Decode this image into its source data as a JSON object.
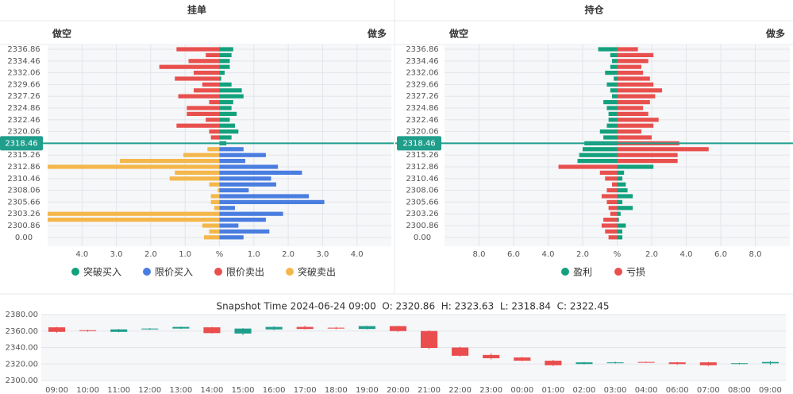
{
  "chart_data": [
    {
      "type": "bar",
      "orientation": "horizontal",
      "title": "挂单",
      "left_label": "做空",
      "right_label": "做多",
      "categories": [
        "2336.86",
        null,
        "2334.46",
        null,
        "2332.06",
        null,
        "2329.66",
        null,
        "2327.26",
        null,
        "2324.86",
        null,
        "2322.46",
        null,
        "2320.06",
        null,
        "2318.46",
        null,
        "2315.26",
        null,
        "2312.86",
        null,
        "2310.46",
        null,
        "2308.06",
        null,
        "2305.66",
        null,
        "2303.26",
        null,
        "2300.86",
        null,
        "0.00"
      ],
      "xlim": [
        -5,
        5
      ],
      "xticks": [
        {
          "value": -4,
          "label": "4.0"
        },
        {
          "value": -3,
          "label": "3.0"
        },
        {
          "value": -2,
          "label": "2.0"
        },
        {
          "value": -1,
          "label": "1.0"
        },
        {
          "value": 0,
          "label": "%"
        },
        {
          "value": 1,
          "label": "1.0"
        },
        {
          "value": 2,
          "label": "2.0"
        },
        {
          "value": 3,
          "label": "3.0"
        },
        {
          "value": 4,
          "label": "4.0"
        }
      ],
      "grid": true,
      "series": [
        {
          "name": "突破买入",
          "color": "#13a17d",
          "values": [
            0.4,
            0.35,
            0.3,
            0.3,
            0.15,
            0.05,
            0.35,
            0.65,
            0.7,
            0.4,
            0.35,
            0.5,
            0.3,
            0.45,
            0.55,
            0.35,
            0.2,
            null,
            null,
            null,
            null,
            null,
            null,
            null,
            null,
            null,
            null,
            null,
            null,
            null,
            null,
            null,
            null
          ]
        },
        {
          "name": "限价买入",
          "color": "#4a7de0",
          "values": [
            null,
            null,
            null,
            null,
            null,
            null,
            null,
            null,
            null,
            null,
            null,
            null,
            null,
            null,
            null,
            null,
            null,
            0.7,
            1.35,
            0.75,
            1.7,
            2.4,
            1.5,
            1.65,
            0.85,
            2.6,
            3.05,
            0.45,
            1.85,
            1.35,
            0.55,
            1.45,
            0.7
          ]
        },
        {
          "name": "限价卖出",
          "color": "#e8504e",
          "values": [
            -1.25,
            -0.4,
            -0.9,
            -1.75,
            -0.75,
            -1.3,
            -0.5,
            -0.75,
            -1.2,
            -0.3,
            -0.95,
            -0.95,
            -0.4,
            -1.25,
            -0.3,
            -0.25,
            null,
            null,
            null,
            null,
            null,
            null,
            null,
            null,
            null,
            null,
            null,
            null,
            null,
            null,
            null,
            null,
            null
          ]
        },
        {
          "name": "突破卖出",
          "color": "#f4b74b",
          "values": [
            null,
            null,
            null,
            null,
            null,
            null,
            null,
            null,
            null,
            null,
            null,
            null,
            null,
            null,
            null,
            null,
            null,
            -0.35,
            -1.05,
            -2.9,
            -5.0,
            -1.3,
            -1.45,
            -0.3,
            -0.05,
            -0.25,
            -0.25,
            -0.15,
            -5.0,
            -5.0,
            -0.5,
            -0.3,
            -0.45
          ]
        }
      ]
    },
    {
      "type": "bar",
      "orientation": "horizontal",
      "title": "持仓",
      "left_label": "做空",
      "right_label": "做多",
      "categories": [
        "2336.86",
        null,
        "2334.46",
        null,
        "2332.06",
        null,
        "2329.66",
        null,
        "2327.26",
        null,
        "2324.86",
        null,
        "2322.46",
        null,
        "2320.06",
        null,
        "2318.46",
        null,
        "2315.26",
        null,
        "2312.86",
        null,
        "2310.46",
        null,
        "2308.06",
        null,
        "2305.66",
        null,
        "2303.26",
        null,
        "2300.86",
        null,
        "0.00"
      ],
      "xlim": [
        -10,
        10
      ],
      "xticks": [
        {
          "value": -8,
          "label": "8.0"
        },
        {
          "value": -6,
          "label": "6.0"
        },
        {
          "value": -4,
          "label": "4.0"
        },
        {
          "value": -2,
          "label": "2.0"
        },
        {
          "value": 0,
          "label": "%"
        },
        {
          "value": 2,
          "label": "2.0"
        },
        {
          "value": 4,
          "label": "4.0"
        },
        {
          "value": 6,
          "label": "6.0"
        },
        {
          "value": 8,
          "label": "8.0"
        }
      ],
      "grid": true,
      "series": [
        {
          "name": "盈利",
          "color": "#13a17d",
          "values": [
            -1.1,
            -0.4,
            -0.3,
            -0.4,
            -0.7,
            -0.2,
            -0.6,
            -0.4,
            -0.3,
            -0.8,
            -0.6,
            -0.5,
            -0.5,
            -0.6,
            -1.0,
            -0.8,
            -1.9,
            -2.0,
            -2.2,
            -2.3,
            2.1,
            0.4,
            0.3,
            0.5,
            0.6,
            0.9,
            0.3,
            0.9,
            0.2,
            0.1,
            0.5,
            0.3,
            0.3
          ]
        },
        {
          "name": "亏损",
          "color": "#e8504e",
          "values": [
            1.2,
            2.1,
            1.8,
            1.4,
            1.5,
            1.9,
            2.1,
            2.6,
            2.2,
            1.9,
            1.5,
            1.8,
            2.4,
            2.1,
            1.4,
            2.0,
            3.6,
            5.3,
            3.5,
            3.5,
            -3.4,
            -1.0,
            -0.7,
            -0.3,
            -0.6,
            -0.9,
            -0.6,
            -0.5,
            -0.4,
            -0.8,
            -0.9,
            -0.7,
            -0.5
          ]
        }
      ]
    },
    {
      "type": "candlestick",
      "title": "Snapshot Time 2024-06-24 09:00  O: 2320.86  H: 2323.63  L: 2318.84  C: 2322.45",
      "categories": [
        "09:00",
        "10:00",
        "11:00",
        "12:00",
        "13:00",
        "14:00",
        "15:00",
        "16:00",
        "17:00",
        "18:00",
        "19:00",
        "20:00",
        "21:00",
        "22:00",
        "23:00",
        "00:00",
        "01:00",
        "02:00",
        "03:00",
        "04:00",
        "06:00",
        "07:00",
        "08:00",
        "09:00"
      ],
      "open": [
        2364.5,
        2361,
        2359,
        2362,
        2363,
        2364.5,
        2357,
        2362,
        2365,
        2364,
        2362.5,
        2366,
        2360,
        2340,
        2331,
        2328,
        2324,
        2320,
        2321.5,
        2322.5,
        2322,
        2322,
        2320,
        2320.86
      ],
      "high": [
        2365,
        2361.5,
        2362.5,
        2363.5,
        2365.5,
        2365,
        2363.5,
        2366,
        2366.5,
        2365,
        2366.5,
        2366.5,
        2361,
        2341,
        2333,
        2328.5,
        2325,
        2322.5,
        2323,
        2323,
        2322.5,
        2322.5,
        2321.5,
        2323.63
      ],
      "low": [
        2358,
        2359,
        2358.5,
        2361.5,
        2362.5,
        2357,
        2355,
        2361,
        2362,
        2362,
        2362,
        2359,
        2338,
        2329,
        2325.5,
        2323.5,
        2317.5,
        2319.5,
        2320.5,
        2321.5,
        2319,
        2317.5,
        2319.5,
        2318.84
      ],
      "close": [
        2359,
        2360,
        2362,
        2363,
        2365,
        2357.5,
        2363,
        2365,
        2362.5,
        2363,
        2366,
        2360,
        2339.5,
        2330,
        2327,
        2324,
        2318.5,
        2322,
        2322,
        2322,
        2320,
        2318.5,
        2321,
        2322.45
      ],
      "up_color": "#1f9e8c",
      "down_color": "#ea4d4d",
      "ylim": [
        2300,
        2380
      ],
      "yticks": [
        {
          "value": 2300,
          "label": "2300.00"
        },
        {
          "value": 2320,
          "label": "2320.00"
        },
        {
          "value": 2340,
          "label": "2340.00"
        },
        {
          "value": 2360,
          "label": "2360.00"
        },
        {
          "value": 2380,
          "label": "2380.00"
        }
      ],
      "grid": true
    }
  ]
}
